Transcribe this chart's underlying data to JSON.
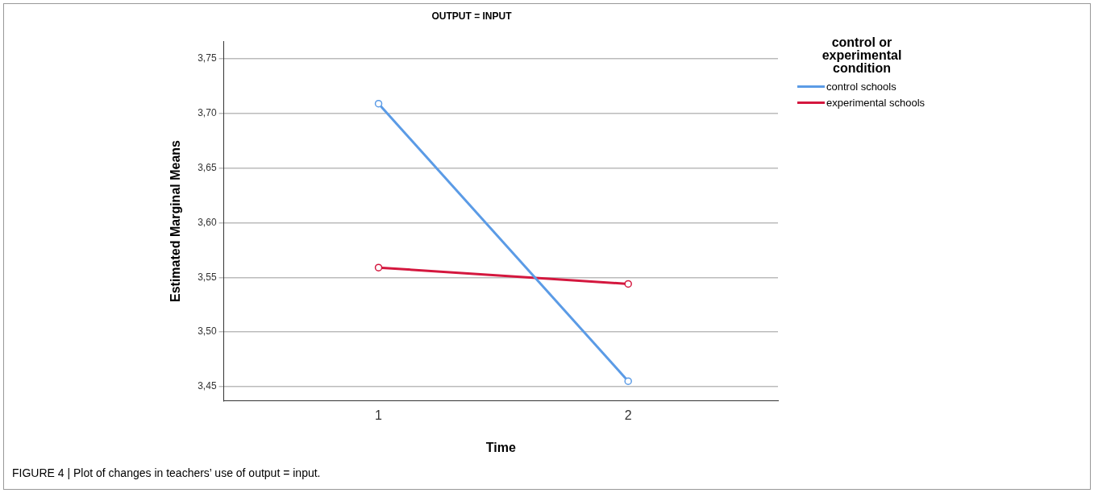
{
  "chart_data": {
    "type": "line",
    "title": "OUTPUT = INPUT",
    "xlabel": "Time",
    "ylabel": "Estimated Marginal Means",
    "legend_title": "control or experimental condition",
    "x": [
      1,
      2
    ],
    "series": [
      {
        "name": "control schools",
        "color": "#5b9be6",
        "values": [
          3.709,
          3.455
        ]
      },
      {
        "name": "experimental schools",
        "color": "#d4173e",
        "values": [
          3.559,
          3.544
        ]
      }
    ],
    "xlim": [
      0.38,
      2.6
    ],
    "xticks": [
      1,
      2
    ],
    "ylim": [
      3.437,
      3.766
    ],
    "yticks": [
      {
        "value": 3.45,
        "label": "3,45"
      },
      {
        "value": 3.5,
        "label": "3,50"
      },
      {
        "value": 3.55,
        "label": "3,55"
      },
      {
        "value": 3.6,
        "label": "3,60"
      },
      {
        "value": 3.65,
        "label": "3,65"
      },
      {
        "value": 3.7,
        "label": "3,70"
      },
      {
        "value": 3.75,
        "label": "3,75"
      }
    ],
    "grid": "y",
    "legend": "top right",
    "marker": "circle",
    "line_style": "solid",
    "annotations": [
      "FIGURE 4 | Plot of changes in teachers’ use of output = input."
    ]
  }
}
